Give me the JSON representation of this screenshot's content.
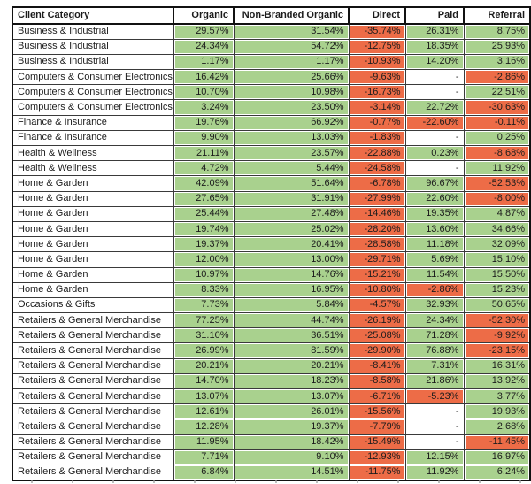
{
  "colors": {
    "positive_fill": "#a9d18e",
    "negative_fill": "#ed6c47",
    "no_data_fill": "#ffffff"
  },
  "chart_data": {
    "type": "table",
    "title": "",
    "legend_note": "green = positive change, red = negative change, dash = no data",
    "columns": [
      "Client Category",
      "Organic",
      "Non-Branded Organic",
      "Direct",
      "Paid",
      "Referral"
    ],
    "rows": [
      [
        "Business & Industrial",
        "29.57%",
        "31.54%",
        "-35.74%",
        "26.31%",
        "8.75%"
      ],
      [
        "Business & Industrial",
        "24.34%",
        "54.72%",
        "-12.75%",
        "18.35%",
        "25.93%"
      ],
      [
        "Business & Industrial",
        "1.17%",
        "1.17%",
        "-10.93%",
        "14.20%",
        "3.16%"
      ],
      [
        "Computers & Consumer Electronics",
        "16.42%",
        "25.66%",
        "-9.63%",
        "-",
        "-2.86%"
      ],
      [
        "Computers & Consumer Electronics",
        "10.70%",
        "10.98%",
        "-16.73%",
        "-",
        "22.51%"
      ],
      [
        "Computers & Consumer Electronics",
        "3.24%",
        "23.50%",
        "-3.14%",
        "22.72%",
        "-30.63%"
      ],
      [
        "Finance & Insurance",
        "19.76%",
        "66.92%",
        "-0.77%",
        "-22.60%",
        "-0.11%"
      ],
      [
        "Finance & Insurance",
        "9.90%",
        "13.03%",
        "-1.83%",
        "-",
        "0.25%"
      ],
      [
        "Health & Wellness",
        "21.11%",
        "23.57%",
        "-22.88%",
        "0.23%",
        "-8.68%"
      ],
      [
        "Health & Wellness",
        "4.72%",
        "5.44%",
        "-24.58%",
        "-",
        "11.92%"
      ],
      [
        "Home & Garden",
        "42.09%",
        "51.64%",
        "-6.78%",
        "96.67%",
        "-52.53%"
      ],
      [
        "Home & Garden",
        "27.65%",
        "31.91%",
        "-27.99%",
        "22.60%",
        "-8.00%"
      ],
      [
        "Home & Garden",
        "25.44%",
        "27.48%",
        "-14.46%",
        "19.35%",
        "4.87%"
      ],
      [
        "Home & Garden",
        "19.74%",
        "25.02%",
        "-28.20%",
        "13.60%",
        "34.66%"
      ],
      [
        "Home & Garden",
        "19.37%",
        "20.41%",
        "-28.58%",
        "11.18%",
        "32.09%"
      ],
      [
        "Home & Garden",
        "12.00%",
        "13.00%",
        "-29.71%",
        "5.69%",
        "15.10%"
      ],
      [
        "Home & Garden",
        "10.97%",
        "14.76%",
        "-15.21%",
        "11.54%",
        "15.50%"
      ],
      [
        "Home & Garden",
        "8.33%",
        "16.95%",
        "-10.80%",
        "-2.86%",
        "15.23%"
      ],
      [
        "Occasions & Gifts",
        "7.73%",
        "5.84%",
        "-4.57%",
        "32.93%",
        "50.65%"
      ],
      [
        "Retailers & General Merchandise",
        "77.25%",
        "44.74%",
        "-26.19%",
        "24.34%",
        "-52.30%"
      ],
      [
        "Retailers & General Merchandise",
        "31.10%",
        "36.51%",
        "-25.08%",
        "71.28%",
        "-9.92%"
      ],
      [
        "Retailers & General Merchandise",
        "26.99%",
        "81.59%",
        "-29.90%",
        "76.88%",
        "-23.15%"
      ],
      [
        "Retailers & General Merchandise",
        "20.21%",
        "20.21%",
        "-8.41%",
        "7.31%",
        "16.31%"
      ],
      [
        "Retailers & General Merchandise",
        "14.70%",
        "18.23%",
        "-8.58%",
        "21.86%",
        "13.92%"
      ],
      [
        "Retailers & General Merchandise",
        "13.07%",
        "13.07%",
        "-6.71%",
        "-5.23%",
        "3.77%"
      ],
      [
        "Retailers & General Merchandise",
        "12.61%",
        "26.01%",
        "-15.56%",
        "-",
        "19.93%"
      ],
      [
        "Retailers & General Merchandise",
        "12.28%",
        "19.37%",
        "-7.79%",
        "-",
        "2.68%"
      ],
      [
        "Retailers & General Merchandise",
        "11.95%",
        "18.42%",
        "-15.49%",
        "-",
        "-11.45%"
      ],
      [
        "Retailers & General Merchandise",
        "7.71%",
        "9.10%",
        "-12.93%",
        "12.15%",
        "16.97%"
      ],
      [
        "Retailers & General Merchandise",
        "6.84%",
        "14.51%",
        "-11.75%",
        "11.92%",
        "6.24%"
      ]
    ]
  }
}
